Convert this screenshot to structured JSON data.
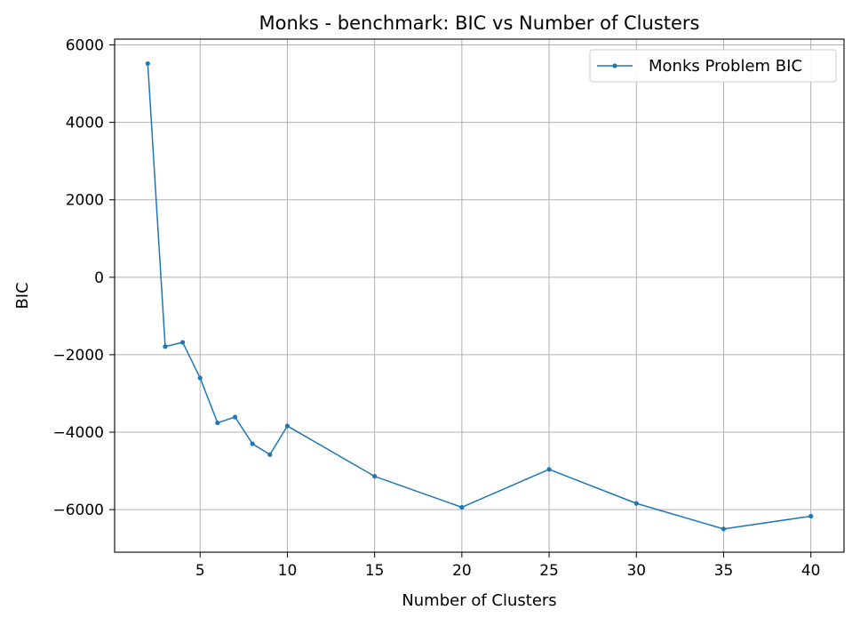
{
  "chart_data": {
    "type": "line",
    "title": "Monks - benchmark: BIC vs Number of Clusters",
    "xlabel": "Number of Clusters",
    "ylabel": "BIC",
    "xlim": [
      0.1,
      41.9
    ],
    "ylim": [
      -7100,
      6150
    ],
    "xticks": [
      5,
      10,
      15,
      20,
      25,
      30,
      35,
      40
    ],
    "yticks": [
      -6000,
      -4000,
      -2000,
      0,
      2000,
      4000,
      6000
    ],
    "xtick_labels": [
      "5",
      "10",
      "15",
      "20",
      "25",
      "30",
      "35",
      "40"
    ],
    "ytick_labels": [
      "−6000",
      "−4000",
      "−2000",
      "0",
      "2000",
      "4000",
      "6000"
    ],
    "grid": true,
    "legend_position": "top-right",
    "series": [
      {
        "name": "Monks Problem BIC",
        "color": "#1f77b4",
        "marker": "circle",
        "x": [
          2,
          3,
          4,
          5,
          6,
          7,
          8,
          9,
          10,
          15,
          20,
          25,
          30,
          35,
          40
        ],
        "y": [
          5520,
          -1790,
          -1680,
          -2600,
          -3760,
          -3610,
          -4300,
          -4580,
          -3840,
          -5140,
          -5940,
          -4960,
          -5840,
          -6500,
          -6170
        ]
      }
    ]
  }
}
